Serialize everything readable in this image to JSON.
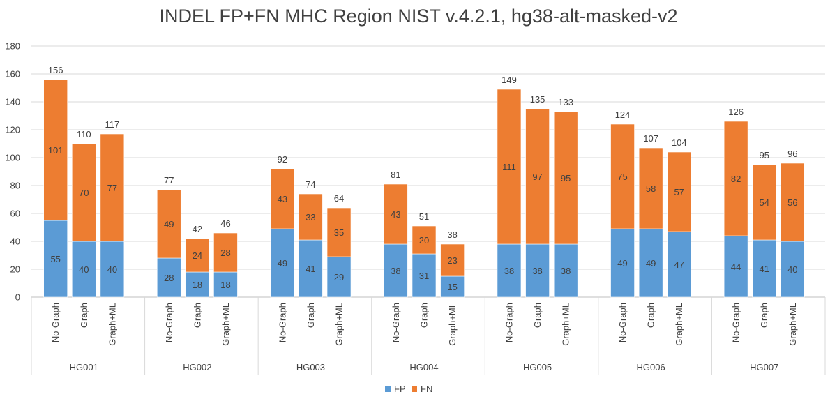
{
  "chart_data": {
    "type": "bar",
    "stacked": true,
    "title": "INDEL FP+FN MHC Region NIST v.4.2.1, hg38-alt-masked-v2",
    "xlabel": "",
    "ylabel": "",
    "ylim": [
      0,
      180
    ],
    "yticks": [
      0,
      20,
      40,
      60,
      80,
      100,
      120,
      140,
      160,
      180
    ],
    "grid": true,
    "legend_position": "bottom",
    "groups": [
      "HG001",
      "HG002",
      "HG003",
      "HG004",
      "HG005",
      "HG006",
      "HG007"
    ],
    "categories": [
      "No-Graph",
      "Graph",
      "Graph+ML"
    ],
    "series": [
      {
        "name": "FP",
        "color": "#5B9BD5",
        "values": [
          [
            55,
            40,
            40
          ],
          [
            28,
            18,
            18
          ],
          [
            49,
            41,
            29
          ],
          [
            38,
            31,
            15
          ],
          [
            38,
            38,
            38
          ],
          [
            49,
            49,
            47
          ],
          [
            44,
            41,
            40
          ]
        ]
      },
      {
        "name": "FN",
        "color": "#ED7D31",
        "values": [
          [
            101,
            70,
            77
          ],
          [
            49,
            24,
            28
          ],
          [
            43,
            33,
            35
          ],
          [
            43,
            20,
            23
          ],
          [
            111,
            97,
            95
          ],
          [
            75,
            58,
            57
          ],
          [
            82,
            54,
            56
          ]
        ]
      }
    ],
    "totals": [
      [
        156,
        110,
        117
      ],
      [
        77,
        42,
        46
      ],
      [
        92,
        74,
        64
      ],
      [
        81,
        51,
        38
      ],
      [
        149,
        135,
        133
      ],
      [
        124,
        107,
        104
      ],
      [
        126,
        95,
        96
      ]
    ]
  }
}
